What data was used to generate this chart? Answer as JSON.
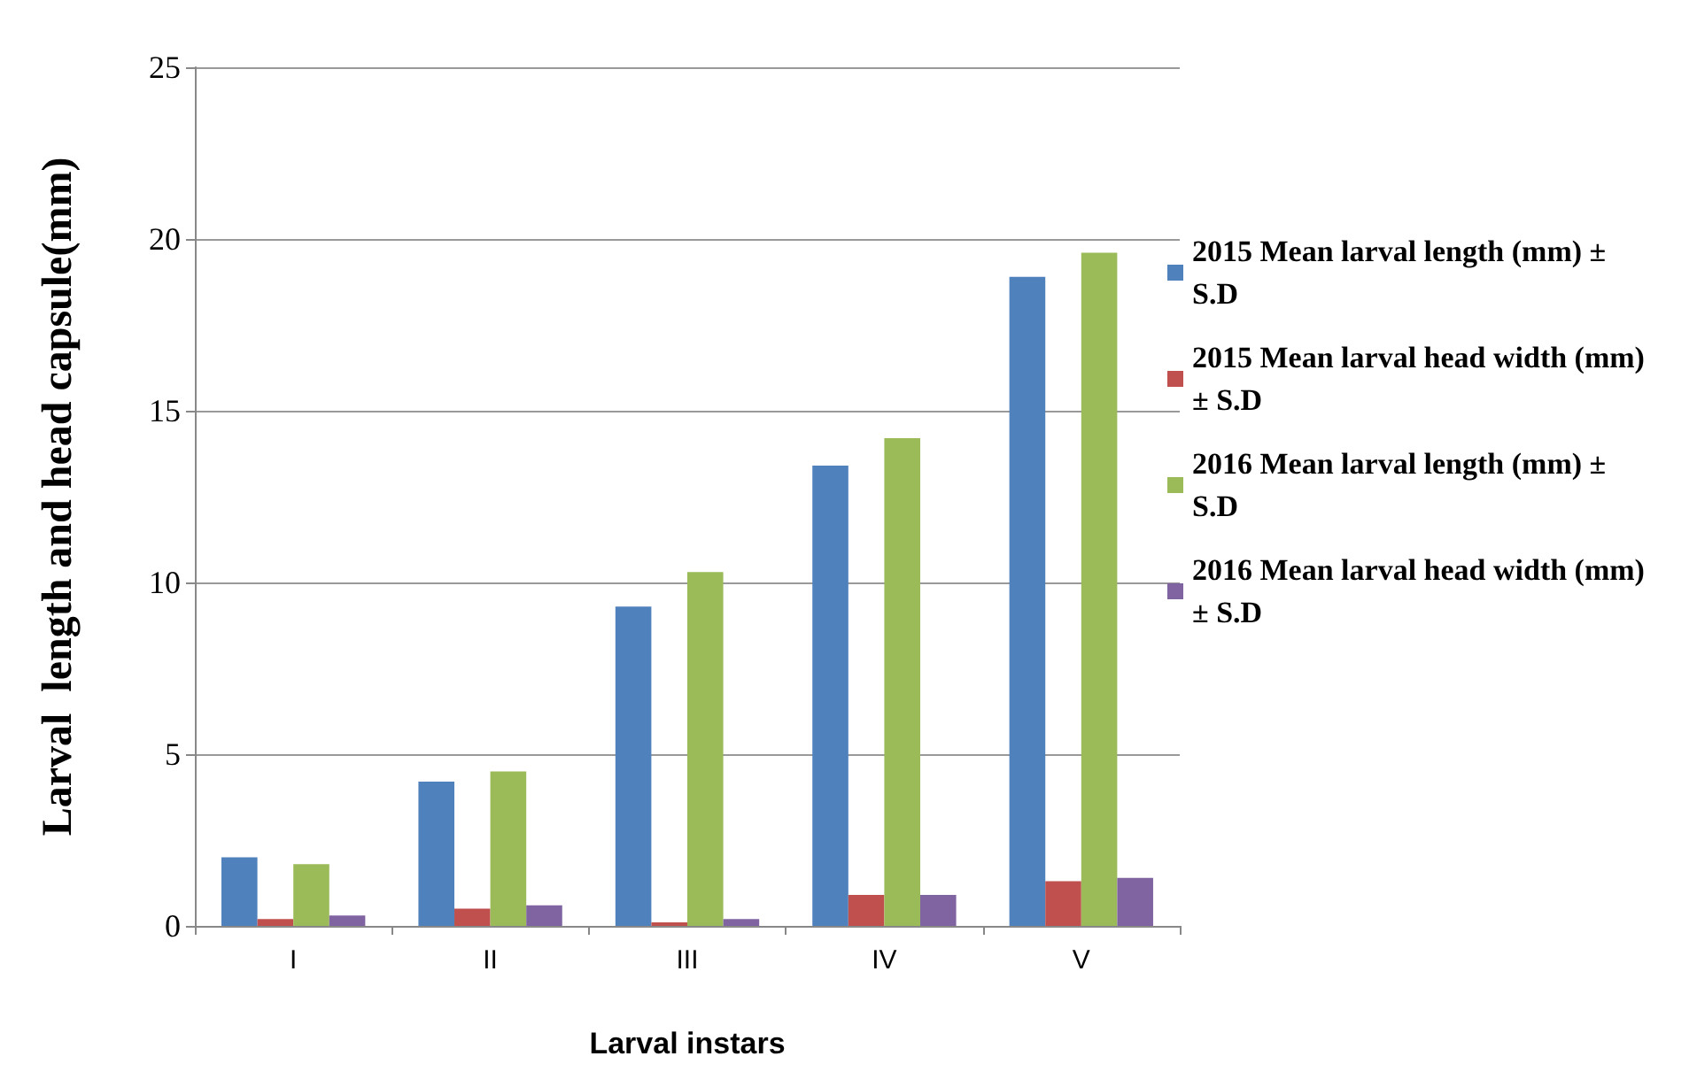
{
  "chart_data": {
    "type": "bar",
    "xlabel": "Larval instars",
    "ylabel": "Larval  length and head capsule(mm)",
    "categories": [
      "I",
      "II",
      "III",
      "IV",
      "V"
    ],
    "series": [
      {
        "name": "2015 Mean larval length (mm) ± S.D",
        "color": "#4f81bd",
        "values": [
          2.0,
          4.2,
          9.3,
          13.4,
          18.9
        ]
      },
      {
        "name": "2015 Mean larval head width (mm) ± S.D",
        "color": "#c0504d",
        "values": [
          0.2,
          0.5,
          0.1,
          0.9,
          1.3
        ]
      },
      {
        "name": "2016 Mean larval length (mm) ± S.D",
        "color": "#9bbb59",
        "values": [
          1.8,
          4.5,
          10.3,
          14.2,
          19.6
        ]
      },
      {
        "name": "2016 Mean larval head width (mm) ± S.D",
        "color": "#8064a2",
        "values": [
          0.3,
          0.6,
          0.2,
          0.9,
          1.4
        ]
      }
    ],
    "ylim": [
      0,
      25
    ],
    "yticks": [
      0,
      5,
      10,
      15,
      20,
      25
    ],
    "grid": "y",
    "legend": "right"
  }
}
